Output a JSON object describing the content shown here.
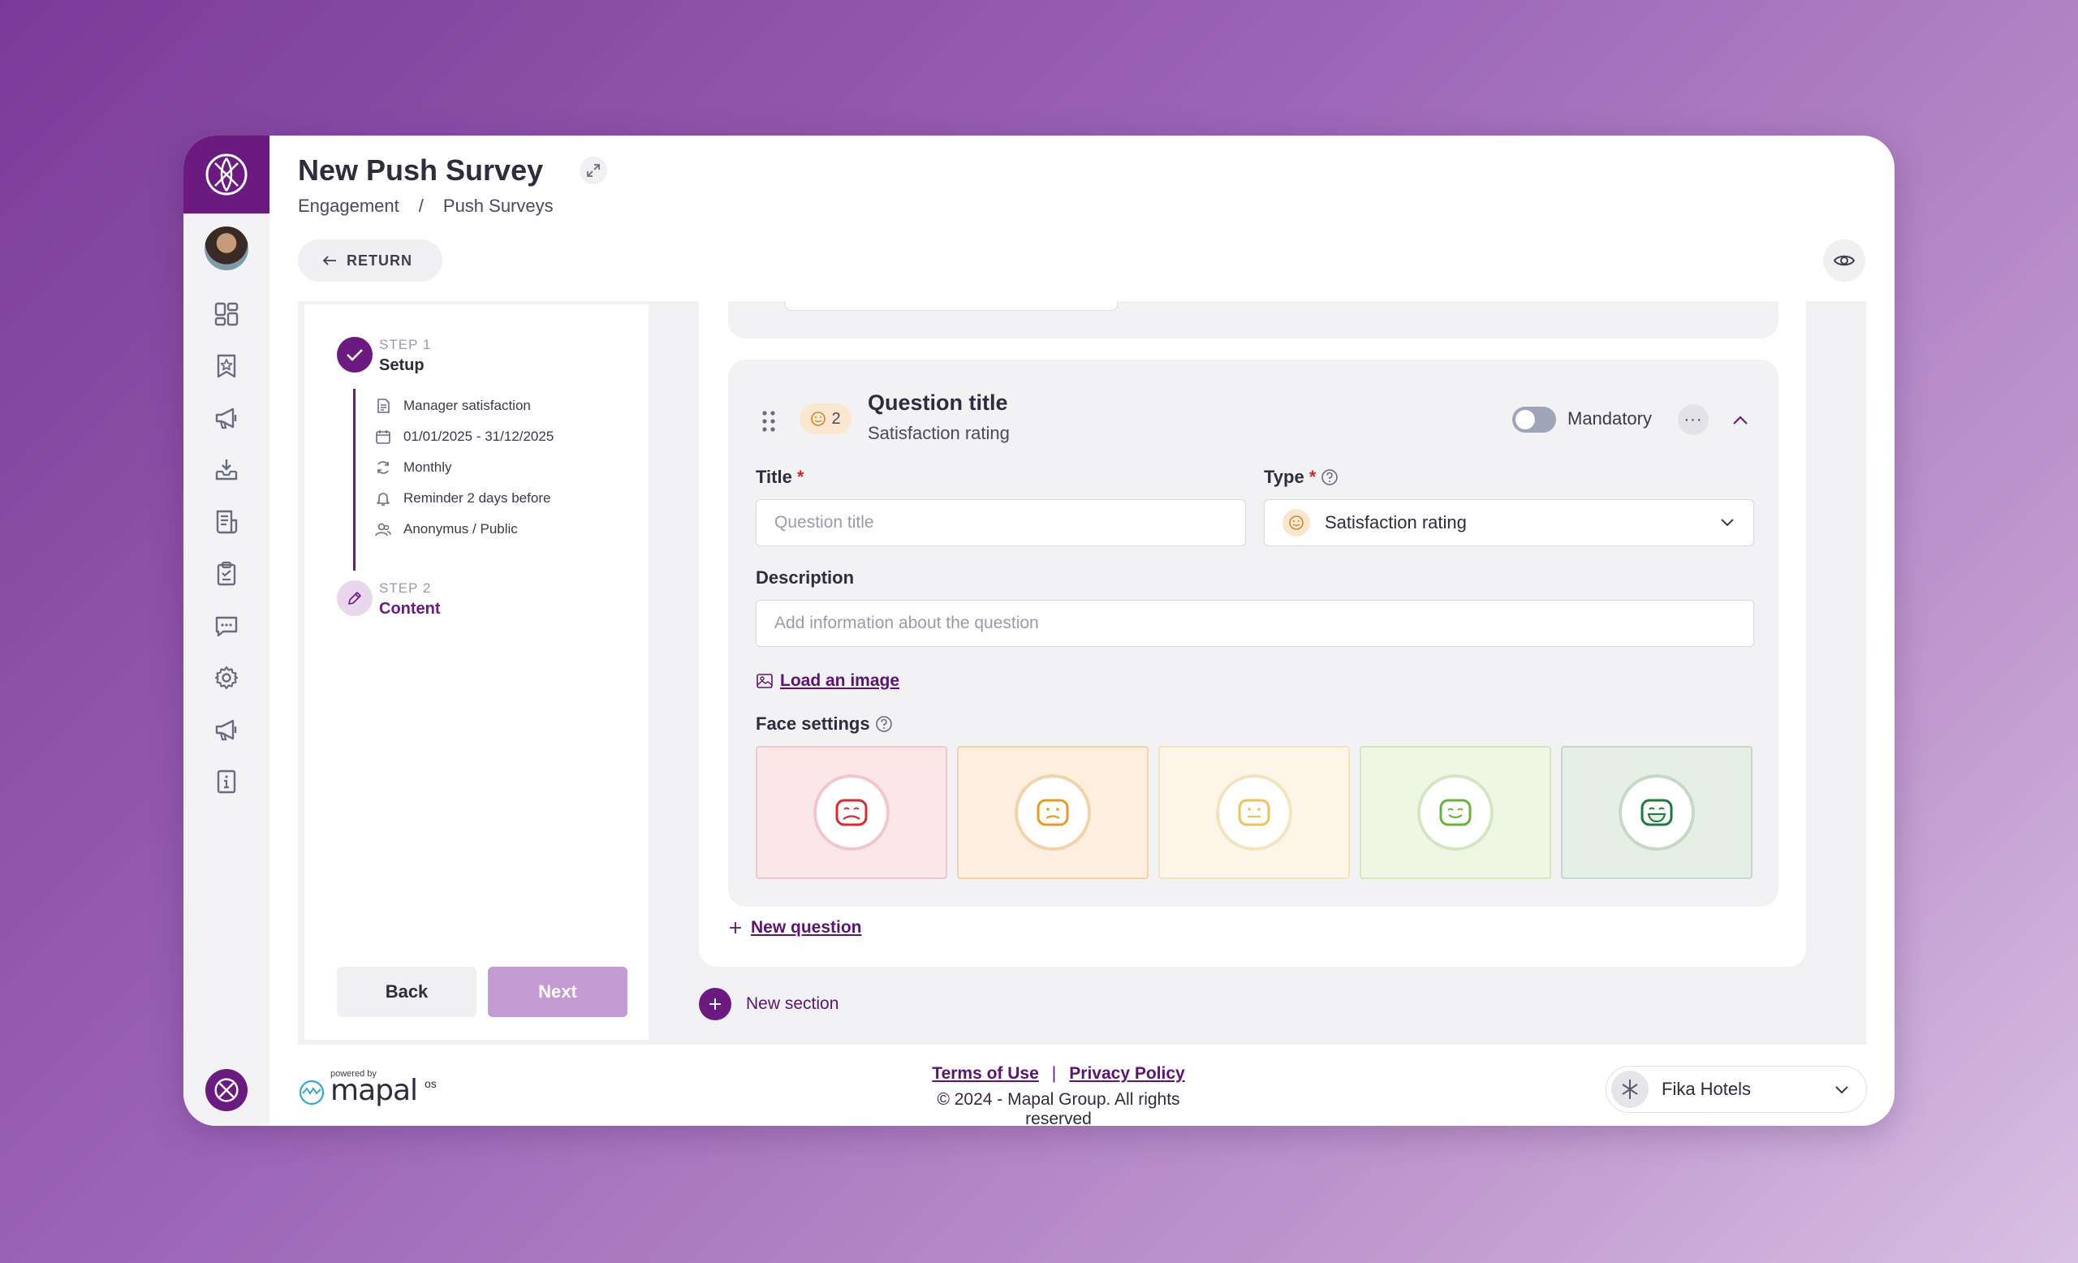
{
  "header": {
    "title": "New Push Survey",
    "breadcrumb": [
      "Engagement",
      "/",
      "Push Surveys"
    ],
    "return_label": "RETURN"
  },
  "sidebar": {
    "items": [
      {
        "icon": "dashboard-icon"
      },
      {
        "icon": "bookmark-star-icon"
      },
      {
        "icon": "megaphone-icon"
      },
      {
        "icon": "inbox-download-icon"
      },
      {
        "icon": "survey-document-icon"
      },
      {
        "icon": "clipboard-check-icon"
      },
      {
        "icon": "chat-icon"
      },
      {
        "icon": "gear-icon"
      },
      {
        "icon": "megaphone-icon"
      },
      {
        "icon": "info-icon"
      }
    ]
  },
  "steps": {
    "step1": {
      "label": "STEP 1",
      "name": "Setup"
    },
    "details": [
      {
        "icon": "document-icon",
        "text": "Manager satisfaction"
      },
      {
        "icon": "calendar-icon",
        "text": "01/01/2025 - 31/12/2025"
      },
      {
        "icon": "refresh-icon",
        "text": "Monthly"
      },
      {
        "icon": "bell-icon",
        "text": "Reminder 2 days before"
      },
      {
        "icon": "users-icon",
        "text": "Anonymus / Public"
      }
    ],
    "step2": {
      "label": "STEP 2",
      "name": "Content"
    },
    "back_label": "Back",
    "next_label": "Next"
  },
  "question": {
    "number": "2",
    "title": "Question title",
    "subtitle": "Satisfaction rating",
    "mandatory_label": "Mandatory",
    "mandatory_on": false,
    "more_label": "···",
    "fields": {
      "title_label": "Title",
      "title_placeholder": "Question title",
      "type_label": "Type",
      "type_value": "Satisfaction rating",
      "description_label": "Description",
      "description_placeholder": "Add information about the question",
      "required_mark": "*"
    },
    "load_image_label": "Load an image",
    "face_settings_label": "Face settings",
    "faces": [
      {
        "mood": "very-unhappy",
        "bg": "#fbe6e8",
        "border": "#f2c7cc",
        "color": "#d62a35"
      },
      {
        "mood": "unhappy",
        "bg": "#fdeede",
        "border": "#f3d3a9",
        "color": "#e79a26"
      },
      {
        "mood": "neutral",
        "bg": "#fdf6e8",
        "border": "#f4e3bf",
        "color": "#f0c25a"
      },
      {
        "mood": "happy",
        "bg": "#eef7e4",
        "border": "#d4e6c0",
        "color": "#69b23d"
      },
      {
        "mood": "very-happy",
        "bg": "#e6efe6",
        "border": "#c6d8c6",
        "color": "#1d7a3c"
      }
    ]
  },
  "actions": {
    "new_question": "New question",
    "new_section": "New section"
  },
  "footer": {
    "powered_by": "powered by",
    "brand": "mapal",
    "brand_suffix": "os",
    "terms": "Terms of Use",
    "separator": "|",
    "privacy": "Privacy Policy",
    "copyright": "© 2024 - Mapal Group. All rights reserved",
    "org_name": "Fika Hotels"
  },
  "colors": {
    "brand_purple": "#6b1a80",
    "link_purple": "#5c1470",
    "next_disabled": "#c49ad3"
  }
}
